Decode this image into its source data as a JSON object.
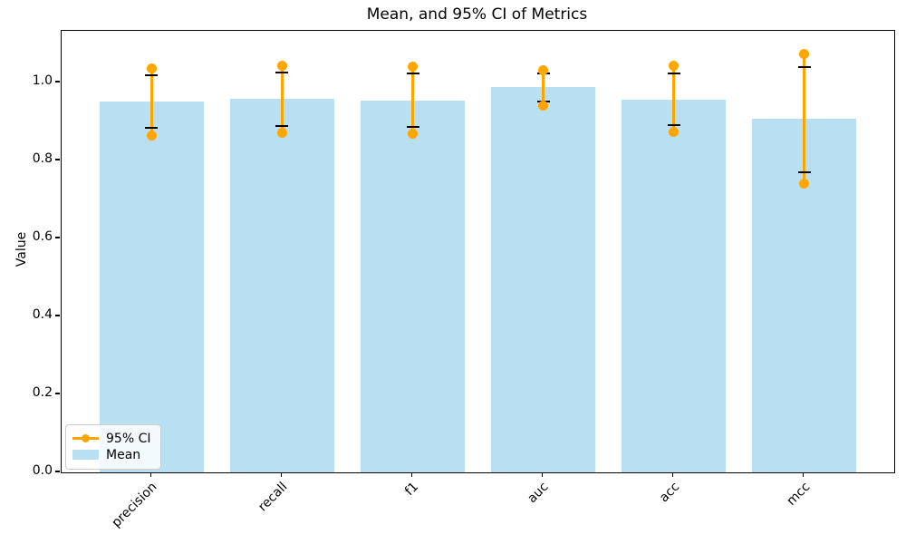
{
  "figure": {
    "title": "Mean, and 95% CI of Metrics",
    "ylabel": "Value"
  },
  "legend": {
    "ci_label": "95% CI",
    "mean_label": "Mean"
  },
  "chart_data": {
    "type": "bar",
    "title": "Mean, and 95% CI of Metrics",
    "xlabel": "",
    "ylabel": "Value",
    "categories": [
      "precision",
      "recall",
      "f1",
      "auc",
      "acc",
      "mcc"
    ],
    "series": [
      {
        "name": "Mean",
        "type": "bar",
        "values": [
          0.952,
          0.959,
          0.953,
          0.988,
          0.956,
          0.907
        ]
      },
      {
        "name": "95% CI",
        "type": "errorbar-line",
        "low": [
          0.864,
          0.872,
          0.87,
          0.94,
          0.874,
          0.74
        ],
        "high": [
          1.037,
          1.043,
          1.041,
          1.031,
          1.043,
          1.074
        ]
      }
    ],
    "error_caps": {
      "low": [
        0.884,
        0.889,
        0.887,
        0.951,
        0.891,
        0.771
      ],
      "high": [
        1.02,
        1.025,
        1.023,
        1.023,
        1.024,
        1.041
      ]
    },
    "yticks": [
      0.0,
      0.2,
      0.4,
      0.6,
      0.8,
      1.0
    ],
    "ylim": [
      0,
      1.133
    ],
    "grid": false,
    "legend_position": "lower left",
    "legend_entries": [
      "95% CI",
      "Mean"
    ],
    "colors": {
      "bar": "#b9e0f2",
      "error_line": "#ffa500",
      "cap": "#000000",
      "axis": "#000000"
    }
  }
}
